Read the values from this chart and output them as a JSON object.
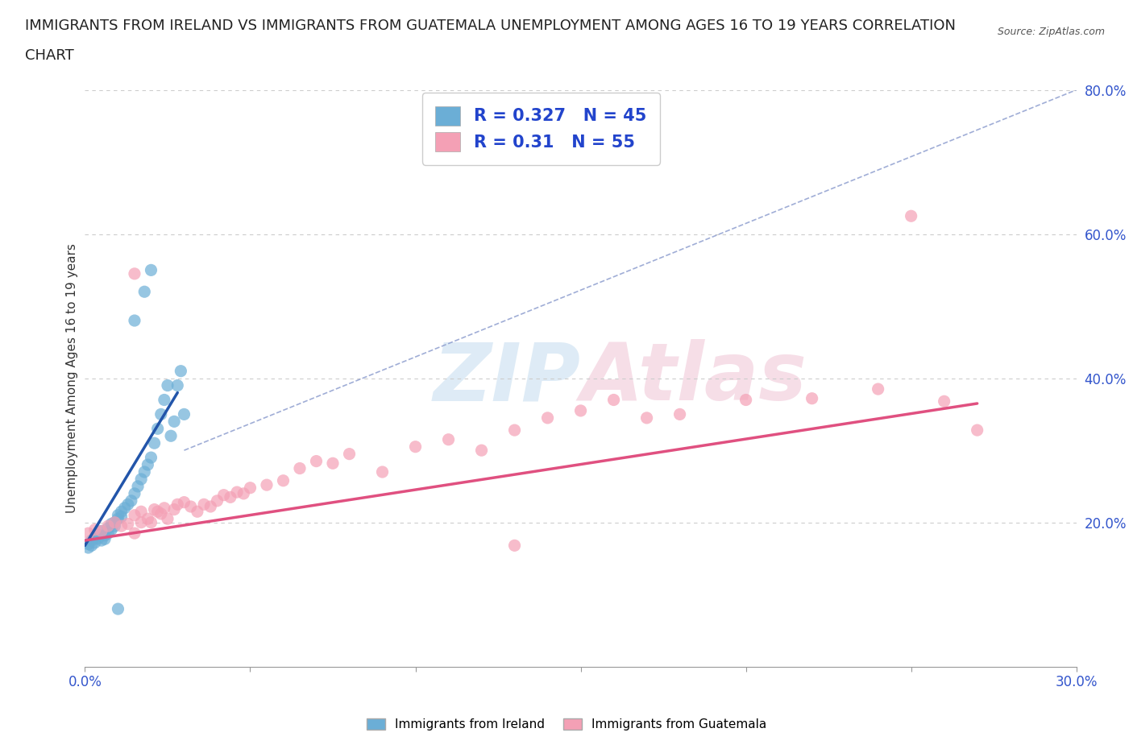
{
  "title_line1": "IMMIGRANTS FROM IRELAND VS IMMIGRANTS FROM GUATEMALA UNEMPLOYMENT AMONG AGES 16 TO 19 YEARS CORRELATION",
  "title_line2": "CHART",
  "source_text": "Source: ZipAtlas.com",
  "ylabel": "Unemployment Among Ages 16 to 19 years",
  "xlim": [
    0.0,
    0.3
  ],
  "ylim": [
    0.0,
    0.8
  ],
  "xticks": [
    0.0,
    0.05,
    0.1,
    0.15,
    0.2,
    0.25,
    0.3
  ],
  "xticklabels": [
    "0.0%",
    "",
    "",
    "",
    "",
    "",
    "30.0%"
  ],
  "yticks": [
    0.0,
    0.2,
    0.4,
    0.6,
    0.8
  ],
  "yticklabels": [
    "",
    "20.0%",
    "40.0%",
    "60.0%",
    "80.0%"
  ],
  "ireland_color": "#6baed6",
  "guatemala_color": "#f4a0b5",
  "ireland_R": 0.327,
  "ireland_N": 45,
  "guatemala_R": 0.31,
  "guatemala_N": 55,
  "watermark": "ZIPAtlas",
  "ireland_scatter_x": [
    0.001,
    0.001,
    0.002,
    0.002,
    0.003,
    0.003,
    0.004,
    0.004,
    0.005,
    0.005,
    0.006,
    0.006,
    0.007,
    0.007,
    0.008,
    0.008,
    0.009,
    0.009,
    0.01,
    0.01,
    0.011,
    0.011,
    0.012,
    0.013,
    0.014,
    0.015,
    0.016,
    0.017,
    0.018,
    0.019,
    0.02,
    0.021,
    0.022,
    0.023,
    0.024,
    0.025,
    0.026,
    0.027,
    0.028,
    0.029,
    0.03,
    0.015,
    0.018,
    0.02,
    0.01
  ],
  "ireland_scatter_y": [
    0.17,
    0.165,
    0.175,
    0.168,
    0.18,
    0.172,
    0.178,
    0.183,
    0.175,
    0.188,
    0.182,
    0.177,
    0.185,
    0.192,
    0.19,
    0.198,
    0.195,
    0.2,
    0.205,
    0.21,
    0.215,
    0.208,
    0.22,
    0.225,
    0.23,
    0.24,
    0.25,
    0.26,
    0.27,
    0.28,
    0.29,
    0.31,
    0.33,
    0.35,
    0.37,
    0.39,
    0.32,
    0.34,
    0.39,
    0.41,
    0.35,
    0.48,
    0.52,
    0.55,
    0.08
  ],
  "guatemala_scatter_x": [
    0.001,
    0.003,
    0.005,
    0.007,
    0.009,
    0.011,
    0.013,
    0.015,
    0.015,
    0.017,
    0.017,
    0.019,
    0.02,
    0.021,
    0.022,
    0.023,
    0.024,
    0.025,
    0.027,
    0.028,
    0.03,
    0.032,
    0.034,
    0.036,
    0.038,
    0.04,
    0.042,
    0.044,
    0.046,
    0.048,
    0.05,
    0.055,
    0.06,
    0.065,
    0.07,
    0.075,
    0.08,
    0.09,
    0.1,
    0.11,
    0.12,
    0.13,
    0.14,
    0.15,
    0.16,
    0.17,
    0.18,
    0.2,
    0.22,
    0.24,
    0.26,
    0.27,
    0.015,
    0.13,
    0.25
  ],
  "guatemala_scatter_y": [
    0.185,
    0.19,
    0.188,
    0.195,
    0.2,
    0.195,
    0.198,
    0.185,
    0.21,
    0.2,
    0.215,
    0.205,
    0.2,
    0.218,
    0.215,
    0.212,
    0.22,
    0.205,
    0.218,
    0.225,
    0.228,
    0.222,
    0.215,
    0.225,
    0.222,
    0.23,
    0.238,
    0.235,
    0.242,
    0.24,
    0.248,
    0.252,
    0.258,
    0.275,
    0.285,
    0.282,
    0.295,
    0.27,
    0.305,
    0.315,
    0.3,
    0.328,
    0.345,
    0.355,
    0.37,
    0.345,
    0.35,
    0.37,
    0.372,
    0.385,
    0.368,
    0.328,
    0.545,
    0.168,
    0.625
  ],
  "ireland_line_x": [
    0.0,
    0.028
  ],
  "ireland_line_y": [
    0.168,
    0.38
  ],
  "guatemala_line_x": [
    0.0,
    0.27
  ],
  "guatemala_line_y": [
    0.175,
    0.365
  ],
  "diag_line_x": [
    0.03,
    0.3
  ],
  "diag_line_y": [
    0.3,
    0.8
  ],
  "background_color": "#ffffff",
  "grid_color": "#cccccc",
  "title_fontsize": 13,
  "axis_label_fontsize": 11
}
